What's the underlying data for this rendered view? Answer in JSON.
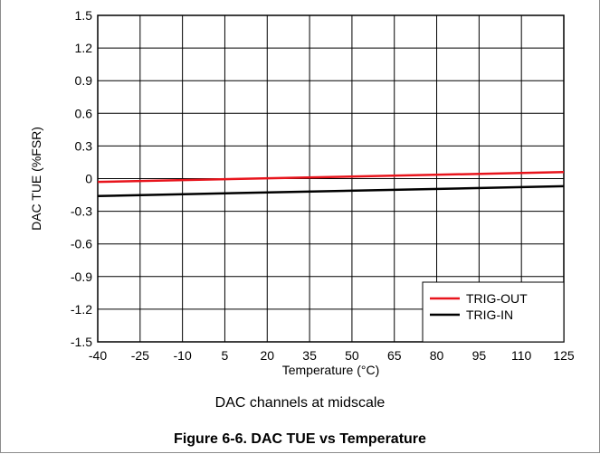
{
  "chart_data": {
    "type": "line",
    "title": "",
    "xlabel": "Temperature (°C)",
    "ylabel": "DAC TUE (%FSR)",
    "xlim": [
      -40,
      125
    ],
    "ylim": [
      -1.5,
      1.5
    ],
    "x_ticks": [
      "-40",
      "-25",
      "-10",
      "5",
      "20",
      "35",
      "50",
      "65",
      "80",
      "95",
      "110",
      "125"
    ],
    "y_ticks": [
      "1.5",
      "1.2",
      "0.9",
      "0.6",
      "0.3",
      "0",
      "-0.3",
      "-0.6",
      "-0.9",
      "-1.2",
      "-1.5"
    ],
    "grid": true,
    "legend_position": "bottom-right",
    "series": [
      {
        "name": "TRIG-OUT",
        "color": "#e8141c",
        "x": [
          -40,
          125
        ],
        "y": [
          -0.03,
          0.06
        ]
      },
      {
        "name": "TRIG-IN",
        "color": "#000000",
        "x": [
          -40,
          125
        ],
        "y": [
          -0.16,
          -0.07
        ]
      }
    ]
  },
  "caption": "DAC channels at midscale",
  "figure_title": "Figure 6-6. DAC TUE vs Temperature"
}
